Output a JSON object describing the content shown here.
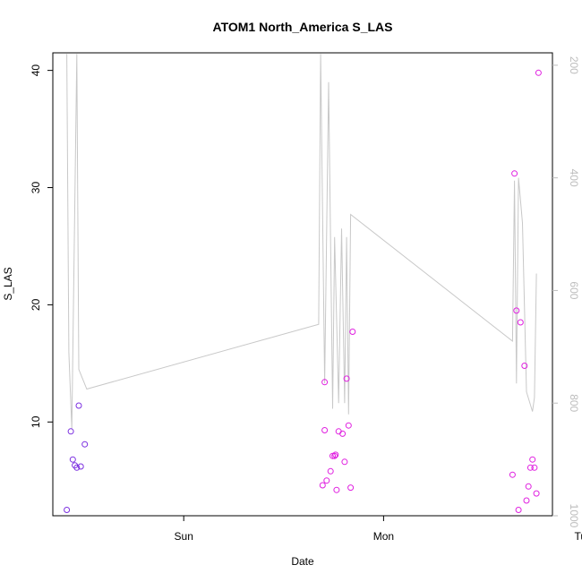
{
  "chart_data": {
    "type": "scatter",
    "title": "ATOM1 North_America S_LAS",
    "xlabel": "Date",
    "ylabel": "S_LAS",
    "x_ticks": [
      {
        "value": 0.855,
        "label": "Sun"
      },
      {
        "value": 1.855,
        "label": "Mon"
      },
      {
        "value": 2.855,
        "label": "Tue"
      }
    ],
    "ylim": [
      2.0,
      41.5
    ],
    "y_ticks": [
      10,
      20,
      30,
      40
    ],
    "y2lim": [
      1000.0,
      178.0
    ],
    "y2_ticks": [
      200,
      400,
      600,
      800,
      1000
    ],
    "colors": {
      "line": "#c8c8c8",
      "points_early": "#7b2fe0",
      "points_late": "#e020e0"
    },
    "points": [
      {
        "x": 0.27,
        "y": 2.5,
        "c": "early"
      },
      {
        "x": 0.29,
        "y": 9.2,
        "c": "early"
      },
      {
        "x": 0.3,
        "y": 6.8,
        "c": "early"
      },
      {
        "x": 0.31,
        "y": 6.3,
        "c": "early"
      },
      {
        "x": 0.32,
        "y": 6.1,
        "c": "early"
      },
      {
        "x": 0.34,
        "y": 6.2,
        "c": "early"
      },
      {
        "x": 0.33,
        "y": 11.4,
        "c": "early"
      },
      {
        "x": 0.36,
        "y": 8.1,
        "c": "early"
      },
      {
        "x": 1.55,
        "y": 4.6,
        "c": "late"
      },
      {
        "x": 1.56,
        "y": 13.4,
        "c": "late"
      },
      {
        "x": 1.56,
        "y": 9.3,
        "c": "late"
      },
      {
        "x": 1.57,
        "y": 5.0,
        "c": "late"
      },
      {
        "x": 1.59,
        "y": 5.8,
        "c": "late"
      },
      {
        "x": 1.6,
        "y": 7.1,
        "c": "late"
      },
      {
        "x": 1.61,
        "y": 7.1,
        "c": "late"
      },
      {
        "x": 1.615,
        "y": 7.2,
        "c": "late"
      },
      {
        "x": 1.62,
        "y": 4.2,
        "c": "late"
      },
      {
        "x": 1.63,
        "y": 9.2,
        "c": "late"
      },
      {
        "x": 1.65,
        "y": 9.0,
        "c": "late"
      },
      {
        "x": 1.66,
        "y": 6.6,
        "c": "late"
      },
      {
        "x": 1.67,
        "y": 13.7,
        "c": "late"
      },
      {
        "x": 1.68,
        "y": 9.7,
        "c": "late"
      },
      {
        "x": 1.69,
        "y": 4.4,
        "c": "late"
      },
      {
        "x": 1.7,
        "y": 17.7,
        "c": "late"
      },
      {
        "x": 2.5,
        "y": 5.5,
        "c": "late"
      },
      {
        "x": 2.51,
        "y": 31.2,
        "c": "late"
      },
      {
        "x": 2.52,
        "y": 19.5,
        "c": "late"
      },
      {
        "x": 2.53,
        "y": 2.5,
        "c": "late"
      },
      {
        "x": 2.54,
        "y": 18.5,
        "c": "late"
      },
      {
        "x": 2.56,
        "y": 14.8,
        "c": "late"
      },
      {
        "x": 2.57,
        "y": 3.3,
        "c": "late"
      },
      {
        "x": 2.58,
        "y": 4.5,
        "c": "late"
      },
      {
        "x": 2.59,
        "y": 6.1,
        "c": "late"
      },
      {
        "x": 2.6,
        "y": 6.8,
        "c": "late"
      },
      {
        "x": 2.61,
        "y": 6.1,
        "c": "late"
      },
      {
        "x": 2.62,
        "y": 3.9,
        "c": "late"
      },
      {
        "x": 2.63,
        "y": 39.8,
        "c": "late"
      }
    ],
    "line": [
      {
        "x": 0.27,
        "y2": 180
      },
      {
        "x": 0.28,
        "y2": 710
      },
      {
        "x": 0.295,
        "y2": 845
      },
      {
        "x": 0.32,
        "y2": 180
      },
      {
        "x": 0.33,
        "y2": 740
      },
      {
        "x": 0.37,
        "y2": 775
      },
      {
        "x": 1.53,
        "y2": 660
      },
      {
        "x": 1.54,
        "y2": 180
      },
      {
        "x": 1.56,
        "y": 13.3
      },
      {
        "x": 1.58,
        "y2": 230
      },
      {
        "x": 1.6,
        "y2": 810
      },
      {
        "x": 1.61,
        "y2": 505
      },
      {
        "x": 1.63,
        "y2": 800
      },
      {
        "x": 1.645,
        "y2": 490
      },
      {
        "x": 1.66,
        "y2": 800
      },
      {
        "x": 1.67,
        "y2": 505
      },
      {
        "x": 1.68,
        "y2": 820
      },
      {
        "x": 1.69,
        "y2": 465
      },
      {
        "x": 2.5,
        "y2": 690
      },
      {
        "x": 2.51,
        "y2": 405
      },
      {
        "x": 2.52,
        "y2": 765
      },
      {
        "x": 2.53,
        "y2": 400
      },
      {
        "x": 2.55,
        "y2": 480
      },
      {
        "x": 2.57,
        "y2": 780
      },
      {
        "x": 2.6,
        "y2": 815
      },
      {
        "x": 2.61,
        "y2": 790
      },
      {
        "x": 2.62,
        "y2": 570
      }
    ]
  }
}
